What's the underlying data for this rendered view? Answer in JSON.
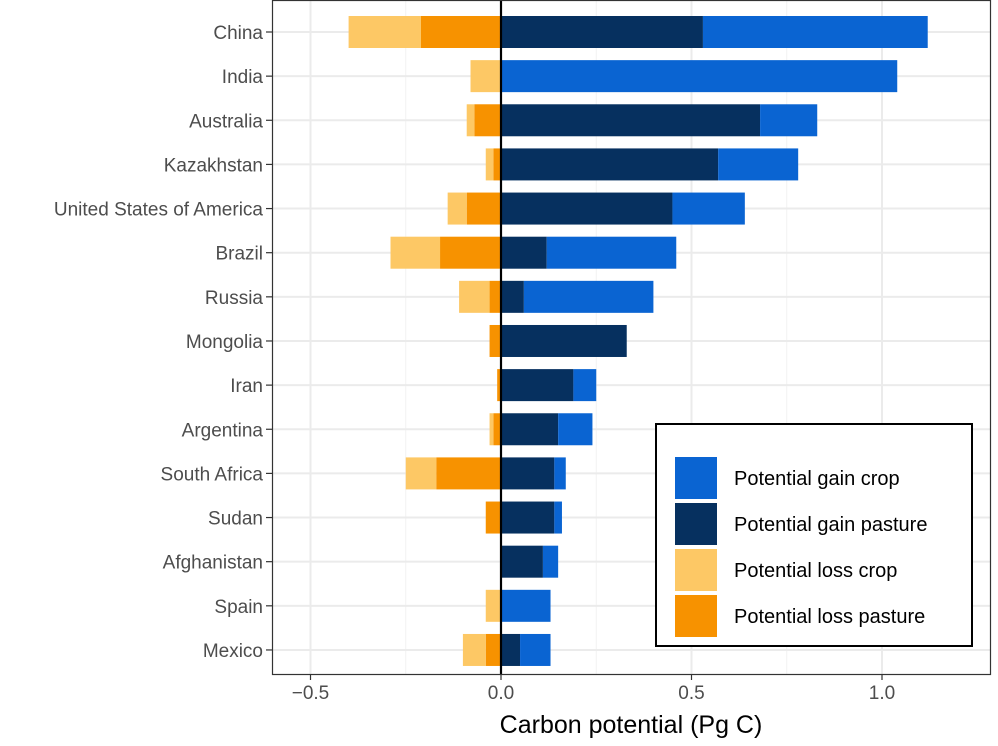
{
  "chart_data": {
    "type": "bar",
    "orientation": "horizontal",
    "stacked": true,
    "title": "",
    "xlabel": "Carbon potential (Pg C)",
    "ylabel": "",
    "xlim": [
      -0.55,
      1.28
    ],
    "x_ticks": [
      -0.5,
      0.0,
      0.5,
      1.0
    ],
    "x_tick_labels": [
      "−0.5",
      "0.0",
      "0.5",
      "1.0"
    ],
    "grid": true,
    "legend_position": "bottom-right",
    "categories": [
      "China",
      "India",
      "Australia",
      "Kazakhstan",
      "United States of America",
      "Brazil",
      "Russia",
      "Mongolia",
      "Iran",
      "Argentina",
      "South Africa",
      "Sudan",
      "Afghanistan",
      "Spain",
      "Mexico"
    ],
    "series": [
      {
        "name": "Potential gain crop",
        "color": "#0a64d2",
        "values": [
          0.59,
          1.04,
          0.15,
          0.21,
          0.19,
          0.34,
          0.34,
          0.0,
          0.06,
          0.09,
          0.03,
          0.02,
          0.04,
          0.13,
          0.08
        ]
      },
      {
        "name": "Potential gain pasture",
        "color": "#06305f",
        "values": [
          0.53,
          0.0,
          0.68,
          0.57,
          0.45,
          0.12,
          0.06,
          0.33,
          0.19,
          0.15,
          0.14,
          0.14,
          0.11,
          0.0,
          0.05
        ]
      },
      {
        "name": "Potential loss crop",
        "color": "#fdc865",
        "values": [
          -0.19,
          -0.08,
          -0.02,
          -0.02,
          -0.05,
          -0.13,
          -0.08,
          0.0,
          0.0,
          -0.01,
          -0.08,
          0.0,
          0.0,
          -0.04,
          -0.06
        ]
      },
      {
        "name": "Potential loss pasture",
        "color": "#f79200",
        "values": [
          -0.21,
          0.0,
          -0.07,
          -0.02,
          -0.09,
          -0.16,
          -0.03,
          -0.03,
          -0.01,
          -0.02,
          -0.17,
          -0.04,
          0.0,
          0.0,
          -0.04
        ]
      }
    ],
    "legend_order": [
      "Potential gain crop",
      "Potential gain pasture",
      "Potential loss crop",
      "Potential loss pasture"
    ]
  }
}
